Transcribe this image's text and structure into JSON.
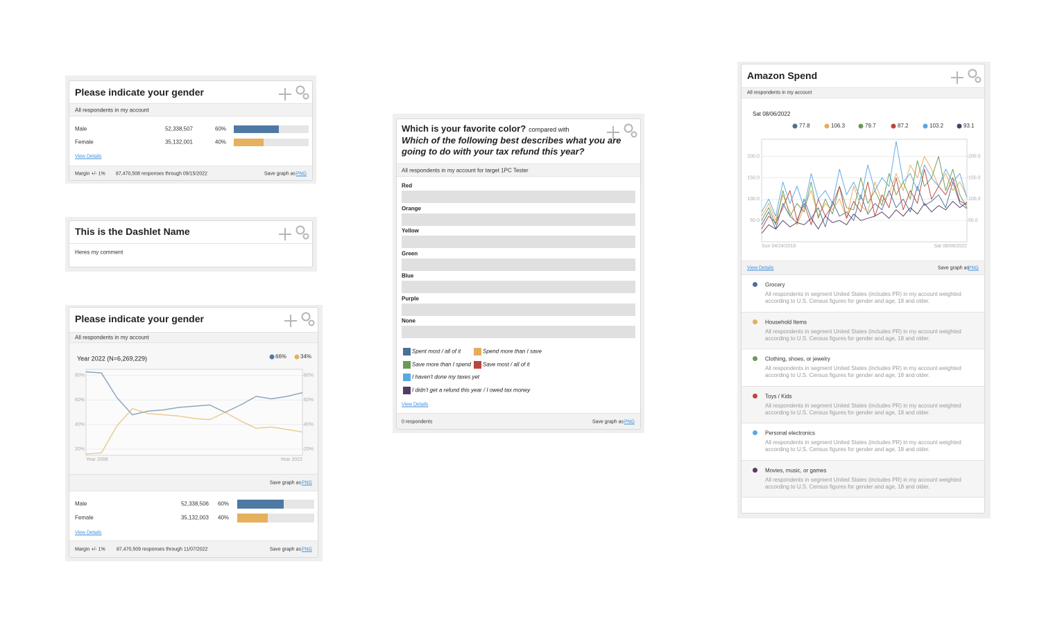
{
  "gender": {
    "title": "Please indicate your gender",
    "subtitle": "All respondents in my account",
    "xlim": [
      0,
      100
    ],
    "rows": [
      {
        "label": "Male",
        "count": "52,338,507",
        "value": 60,
        "value_label": "60%",
        "color": "#4e79a5"
      },
      {
        "label": "Female",
        "count": "35,132,001",
        "value": 40,
        "value_label": "40%",
        "color": "#e5b15c"
      }
    ],
    "link": "View Details",
    "margin": "Margin +/- 1%",
    "responses": "87,470,508 responses through 09/15/2022",
    "save": "Save graph as",
    "png": "PNG"
  },
  "dashlet": {
    "title": "This is the Dashlet Name",
    "comment": "Heres my comment"
  },
  "gender_trend": {
    "title": "Please indicate your gender",
    "subtitle": "All respondents in my account",
    "chart": {
      "type": "line",
      "title": "Year 2022 (N=6,269,229)",
      "categories": [
        "Year 2008",
        null,
        null,
        null,
        null,
        null,
        null,
        null,
        null,
        null,
        null,
        null,
        null,
        null,
        "Year 2022"
      ],
      "series": [
        {
          "name": "66%",
          "color": "#4e79a5",
          "values": [
            83,
            82,
            62,
            48,
            51,
            52,
            54,
            55,
            56,
            50,
            56,
            63,
            61,
            63,
            66
          ]
        },
        {
          "name": "34%",
          "color": "#e5b15c",
          "values": [
            16,
            17,
            39,
            53,
            49,
            48,
            47,
            45,
            44,
            50,
            43,
            37,
            38,
            36,
            34
          ]
        }
      ],
      "ylim": [
        15,
        85
      ],
      "yticks": [
        {
          "value": 80,
          "label": "80%"
        },
        {
          "value": 60,
          "label": "60%"
        },
        {
          "value": 40,
          "label": "40%"
        },
        {
          "value": 20,
          "label": "20%"
        }
      ],
      "y2lim": [
        15,
        85
      ],
      "y2ticks": [
        {
          "value": 80,
          "label": "80%"
        },
        {
          "value": 60,
          "label": "60%"
        },
        {
          "value": 40,
          "label": "40%"
        },
        {
          "value": 20,
          "label": "20%"
        }
      ],
      "grid": true
    },
    "chart_save": "Save graph as",
    "chart_png": "PNG",
    "xlim": [
      0,
      100
    ],
    "rows": [
      {
        "label": "Male",
        "count": "52,338,506",
        "value": 60,
        "value_label": "60%",
        "color": "#4e79a5"
      },
      {
        "label": "Female",
        "count": "35,132,003",
        "value": 40,
        "value_label": "40%",
        "color": "#e5b15c"
      }
    ],
    "link": "View Details",
    "margin": "Margin +/- 1%",
    "responses": "87,470,509 responses through 11/07/2022",
    "save": "Save graph as",
    "png": "PNG"
  },
  "color_question": {
    "title": "Which is your favorite color?",
    "compared": "compared with",
    "question": "Which of the following best describes what you are going to do with your tax refund this year?",
    "subtitle": "All respondents in my account for target 1PC Tester",
    "categories": [
      "Red",
      "Orange",
      "Yellow",
      "Green",
      "Blue",
      "Purple",
      "None"
    ],
    "legend": [
      {
        "name": "Spent most / all of it",
        "color": "#4b6f96"
      },
      {
        "name": "Spend more than I save",
        "color": "#e5ad5b"
      },
      {
        "name": "Save more than I spend",
        "color": "#6a9a58"
      },
      {
        "name": "Save most / all of it",
        "color": "#b9473e"
      },
      {
        "name": "I haven't done my taxes yet",
        "color": "#5aa7e4"
      },
      {
        "name": "I didn't get a refund this year / I owed tax money",
        "color": "#563b63"
      }
    ],
    "link": "View Details",
    "respondents": "0 respondents",
    "save": "Save graph as",
    "png": "PNG"
  },
  "amazon": {
    "title": "Amazon Spend",
    "subtitle": "All respondents in my account",
    "chart": {
      "type": "line",
      "date": "Sat 08/06/2022",
      "categories": [
        "Sun 04/24/2016",
        null,
        null,
        null,
        null,
        null,
        null,
        null,
        null,
        null,
        null,
        null,
        null,
        null,
        null,
        null,
        null,
        null,
        null,
        null,
        null,
        null,
        null,
        null,
        null,
        null,
        null,
        null,
        null,
        "Sat 08/06/2022"
      ],
      "series": [
        {
          "name": "Grocery",
          "color": "#4b6f96",
          "description": "All respondents in segment United States (includes PR) in my account weighted according to U.S. Census figures for gender and age, 18 and older.",
          "values": [
            40,
            70,
            30,
            90,
            60,
            45,
            100,
            55,
            80,
            35,
            95,
            60,
            70,
            50,
            110,
            65,
            90,
            75,
            120,
            80,
            100,
            70,
            130,
            85,
            95,
            110,
            80,
            140,
            90,
            77.8
          ]
        },
        {
          "name": "Household Items",
          "color": "#e5ad5b",
          "description": "All respondents in segment United States (includes PR) in my account weighted according to U.S. Census figures for gender and age, 18 and older.",
          "values": [
            60,
            90,
            50,
            110,
            70,
            40,
            80,
            120,
            60,
            90,
            75,
            100,
            55,
            130,
            85,
            70,
            140,
            95,
            110,
            160,
            120,
            180,
            150,
            200,
            170,
            130,
            160,
            120,
            140,
            106.3
          ]
        },
        {
          "name": "Clothing, shoes, or jewelry",
          "color": "#6a9a58",
          "description": "All respondents in segment United States (includes PR) in my account weighted according to U.S. Census figures for gender and age, 18 and older.",
          "values": [
            50,
            80,
            40,
            120,
            60,
            90,
            70,
            140,
            55,
            100,
            65,
            130,
            80,
            75,
            150,
            90,
            120,
            85,
            160,
            110,
            140,
            100,
            190,
            130,
            150,
            200,
            120,
            170,
            110,
            79.7
          ]
        },
        {
          "name": "Toys / Kids",
          "color": "#b9473e",
          "description": "All respondents in segment United States (includes PR) in my account weighted according to U.S. Census figures for gender and age, 18 and older.",
          "values": [
            30,
            60,
            45,
            80,
            120,
            50,
            90,
            40,
            100,
            60,
            85,
            130,
            55,
            95,
            70,
            140,
            60,
            110,
            80,
            150,
            75,
            120,
            90,
            170,
            100,
            130,
            110,
            150,
            95,
            87.2
          ]
        },
        {
          "name": "Personal electronics",
          "color": "#5aa7e4",
          "description": "All respondents in segment United States (includes PR) in my account weighted according to U.S. Census figures for gender and age, 18 and older.",
          "values": [
            70,
            100,
            60,
            140,
            90,
            130,
            80,
            160,
            100,
            120,
            90,
            170,
            110,
            140,
            100,
            180,
            120,
            150,
            130,
            235,
            140,
            160,
            120,
            180,
            150,
            130,
            170,
            140,
            160,
            103.2
          ]
        },
        {
          "name": "Movies, music, or games",
          "color": "#563b63",
          "description": "All respondents in segment United States (includes PR) in my account weighted according to U.S. Census figures for gender and age, 18 and older.",
          "values": [
            20,
            40,
            30,
            50,
            35,
            45,
            40,
            55,
            30,
            60,
            45,
            50,
            40,
            65,
            50,
            55,
            60,
            70,
            55,
            75,
            60,
            80,
            65,
            90,
            70,
            85,
            75,
            95,
            80,
            93.1
          ]
        }
      ],
      "ylim": [
        0,
        240
      ],
      "yticks": [
        {
          "value": 200,
          "label": "200.0"
        },
        {
          "value": 150,
          "label": "150.0"
        },
        {
          "value": 100,
          "label": "100.0"
        },
        {
          "value": 50,
          "label": "50.0"
        }
      ],
      "y2lim": [
        0,
        240
      ],
      "y2ticks": [
        {
          "value": 200,
          "label": "200.0"
        },
        {
          "value": 150,
          "label": "150.0"
        },
        {
          "value": 100,
          "label": "100.0"
        },
        {
          "value": 50,
          "label": "50.0"
        }
      ]
    },
    "link": "View Details",
    "save": "Save graph as",
    "png": "PNG"
  }
}
